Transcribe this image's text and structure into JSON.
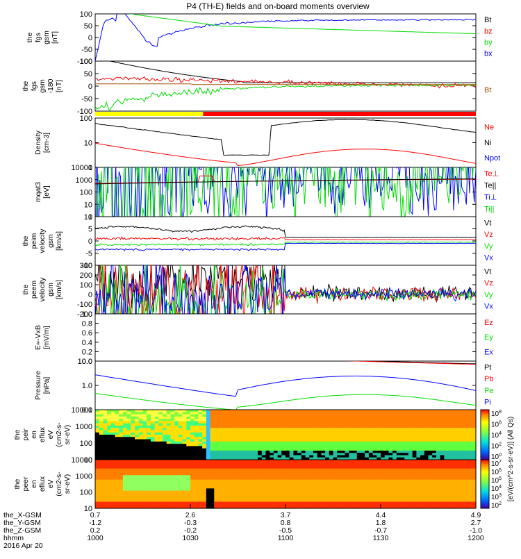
{
  "title": "P4 (TH-E) fields and on-board moments overview",
  "colors": {
    "black": "#000000",
    "red": "#ff0000",
    "green": "#00dd00",
    "blue": "#0000ff",
    "yellow": "#ffff00",
    "brown": "#a05000"
  },
  "chart_data": {
    "type": "line",
    "panels": [
      {
        "id": "fgs",
        "ylabel": [
          "the",
          "fgs",
          "gsm",
          "[nT]"
        ],
        "yticks": [
          "100",
          "50",
          "0",
          "-50",
          "-100"
        ],
        "ylim": [
          -100,
          100
        ],
        "legend": [
          {
            "name": "Bt",
            "color": "black"
          },
          {
            "name": "bz",
            "color": "red"
          },
          {
            "name": "by",
            "color": "green"
          },
          {
            "name": "bx",
            "color": "blue"
          }
        ]
      },
      {
        "id": "fgs_gse",
        "ylabel": [
          "the",
          "fgs",
          "gsm",
          "-180",
          "[nT]"
        ],
        "yticks": [
          "100",
          "50",
          "0",
          "-50",
          "-100"
        ],
        "ylim": [
          -120,
          100
        ],
        "legend": [
          {
            "name": "Bt",
            "color": "brown"
          }
        ]
      },
      {
        "id": "density",
        "ylabel": [
          "Density",
          "[cm-3]"
        ],
        "yticks": [
          "100",
          "10",
          "1"
        ],
        "log": true,
        "legend": [
          {
            "name": "Ne",
            "color": "red"
          },
          {
            "name": "Ni",
            "color": "black"
          },
          {
            "name": "Npot",
            "color": "blue"
          }
        ]
      },
      {
        "id": "temp",
        "ylabel": [
          "mqat3",
          "[eV]"
        ],
        "yticks": [
          "10000",
          "1000",
          "100",
          "10",
          "1"
        ],
        "log": true,
        "legend": [
          {
            "name": "Te⊥",
            "color": "red"
          },
          {
            "name": "Te||",
            "color": "black"
          },
          {
            "name": "Ti⊥",
            "color": "blue"
          },
          {
            "name": "Ti||",
            "color": "green"
          }
        ]
      },
      {
        "id": "peim",
        "ylabel": [
          "the",
          "peim",
          "velocity",
          "gsm",
          "[km/s]"
        ],
        "yticks": [
          "10",
          "5",
          "0",
          "-5",
          "-10"
        ],
        "ylim": [
          -10,
          10
        ],
        "legend": [
          {
            "name": "Vt",
            "color": "black"
          },
          {
            "name": "Vz",
            "color": "red"
          },
          {
            "name": "Vy",
            "color": "green"
          },
          {
            "name": "Vx",
            "color": "blue"
          }
        ]
      },
      {
        "id": "peem",
        "ylabel": [
          "the",
          "peem",
          "velocity",
          "gsm",
          "[km/s]"
        ],
        "yticks": [
          "300",
          "200",
          "100",
          "0",
          "-100",
          "-200"
        ],
        "ylim": [
          -200,
          300
        ],
        "legend": [
          {
            "name": "Vt",
            "color": "black"
          },
          {
            "name": "Vz",
            "color": "red"
          },
          {
            "name": "Vy",
            "color": "green"
          },
          {
            "name": "Vx",
            "color": "blue"
          }
        ]
      },
      {
        "id": "efield",
        "ylabel": [
          "E=-VxB",
          "[mV/m]"
        ],
        "yticks": [
          "1.0",
          "0.8",
          "0.6",
          "0.4",
          "0.2",
          "0.0"
        ],
        "ylim": [
          0,
          1
        ],
        "legend": [
          {
            "name": "Ez",
            "color": "red"
          },
          {
            "name": "Ey",
            "color": "green"
          },
          {
            "name": "Ex",
            "color": "blue"
          }
        ]
      },
      {
        "id": "pressure",
        "ylabel": [
          "Pressure",
          "[nPa]"
        ],
        "yticks": [
          "10.0",
          "1.0",
          "0.1"
        ],
        "log": true,
        "legend": [
          {
            "name": "Pt",
            "color": "black"
          },
          {
            "name": "Pb",
            "color": "red"
          },
          {
            "name": "Pe",
            "color": "green"
          },
          {
            "name": "Pi",
            "color": "blue"
          }
        ]
      },
      {
        "id": "peir",
        "ylabel": [
          "the",
          "peir",
          "en",
          "eflux",
          "eV",
          "(cm2-s-",
          "sr-eV)"
        ],
        "yticks": [
          "10000",
          "1000",
          "100",
          "10"
        ],
        "log": true
      },
      {
        "id": "peer",
        "ylabel": [
          "the",
          "peer",
          "en",
          "eflux",
          "eV",
          "(cm2-s-",
          "sr-eV)"
        ],
        "yticks": [
          "10000",
          "1000",
          "100",
          "10"
        ],
        "log": true
      }
    ],
    "colorbar": {
      "label": "[eV/(cm^2-s-sr-eV)] (All Qs)",
      "top": [
        "10^8",
        "10^6",
        "10^4",
        "10^2",
        "10^0"
      ],
      "bottom": [
        "10^7",
        "10^6",
        "10^5",
        "10^4",
        "10^3",
        "10^2"
      ]
    },
    "x_axis": {
      "labels": [
        "the_X-GSM",
        "the_Y-GSM",
        "the_Z-GSM",
        "hhmm",
        "2016 Apr 20"
      ],
      "ticks": [
        {
          "x": "1000",
          "X": "0.7",
          "Y": "-1.2",
          "Z": "0.2"
        },
        {
          "x": "1030",
          "X": "2.6",
          "Y": "-0.3",
          "Z": "-0.2"
        },
        {
          "x": "1100",
          "X": "3.7",
          "Y": "0.8",
          "Z": "-0.5"
        },
        {
          "x": "1130",
          "X": "4.4",
          "Y": "1.8",
          "Z": "-0.7"
        },
        {
          "x": "1200",
          "X": "4.9",
          "Y": "2.7",
          "Z": "-1.0"
        }
      ]
    },
    "mode_bar": [
      {
        "from": "1000",
        "to": "1034",
        "color": "yellow"
      },
      {
        "from": "1034",
        "to": "1200",
        "color": "red"
      }
    ]
  }
}
